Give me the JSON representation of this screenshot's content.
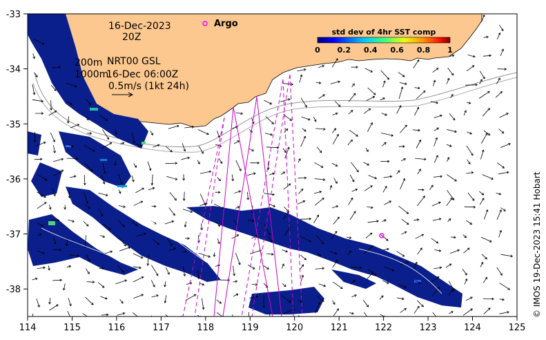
{
  "map": {
    "date": "16-Dec-2023",
    "time": "20Z",
    "depth_label_1": "200m",
    "depth_label_2": "1000m",
    "product": "NRT00 GSL",
    "product_time": "16-Dec 06:00Z",
    "scale_text": "0.5m/s (1kt 24h)",
    "argo_label": "Argo",
    "colorbar": {
      "title": "std dev of 4hr SST comp",
      "ticks": [
        "0",
        "0.2",
        "0.4",
        "0.6",
        "0.8",
        "1"
      ]
    },
    "x_ticks": [
      "114",
      "115",
      "116",
      "117",
      "118",
      "119",
      "120",
      "121",
      "122",
      "123",
      "124",
      "125"
    ],
    "y_ticks": [
      "-33",
      "-34",
      "-35",
      "-36",
      "-37",
      "-38"
    ],
    "credit": "© IMOS 19-Dec-2023 15:41 Hobart",
    "colors": {
      "land": "#fcc88f",
      "track": "#cc00cc",
      "argo": "#ff00ff",
      "isobath": "#909090",
      "data_dark": "#0b1f8c"
    }
  }
}
